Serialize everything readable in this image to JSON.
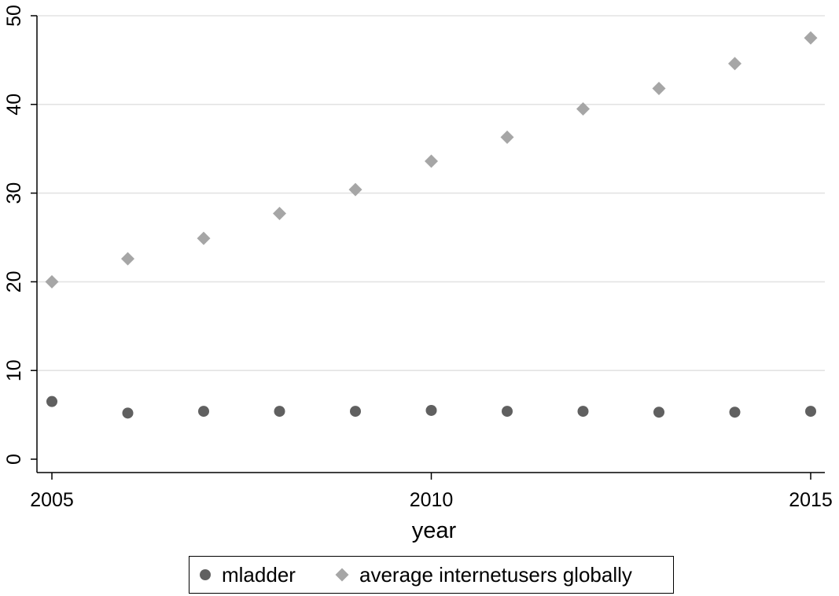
{
  "chart_data": {
    "type": "scatter",
    "title": "",
    "xlabel": "year",
    "ylabel": "",
    "xlim": [
      2005,
      2015
    ],
    "ylim": [
      0,
      50
    ],
    "x_ticks": [
      "2005",
      "2010",
      "2015"
    ],
    "y_ticks": [
      "0",
      "10",
      "20",
      "30",
      "40",
      "50"
    ],
    "grid": true,
    "legend_position": "bottom",
    "x": [
      2005,
      2006,
      2007,
      2008,
      2009,
      2010,
      2011,
      2012,
      2013,
      2014,
      2015
    ],
    "series": [
      {
        "name": "mladder",
        "marker": "circle",
        "color": "#606060",
        "values": [
          6.5,
          5.2,
          5.4,
          5.4,
          5.4,
          5.5,
          5.4,
          5.4,
          5.3,
          5.3,
          5.4
        ]
      },
      {
        "name": "average internetusers globally",
        "marker": "diamond",
        "color": "#a6a6a6",
        "values": [
          20.0,
          22.6,
          24.9,
          27.7,
          30.4,
          33.6,
          36.3,
          39.5,
          41.8,
          44.6,
          47.5
        ]
      }
    ]
  }
}
